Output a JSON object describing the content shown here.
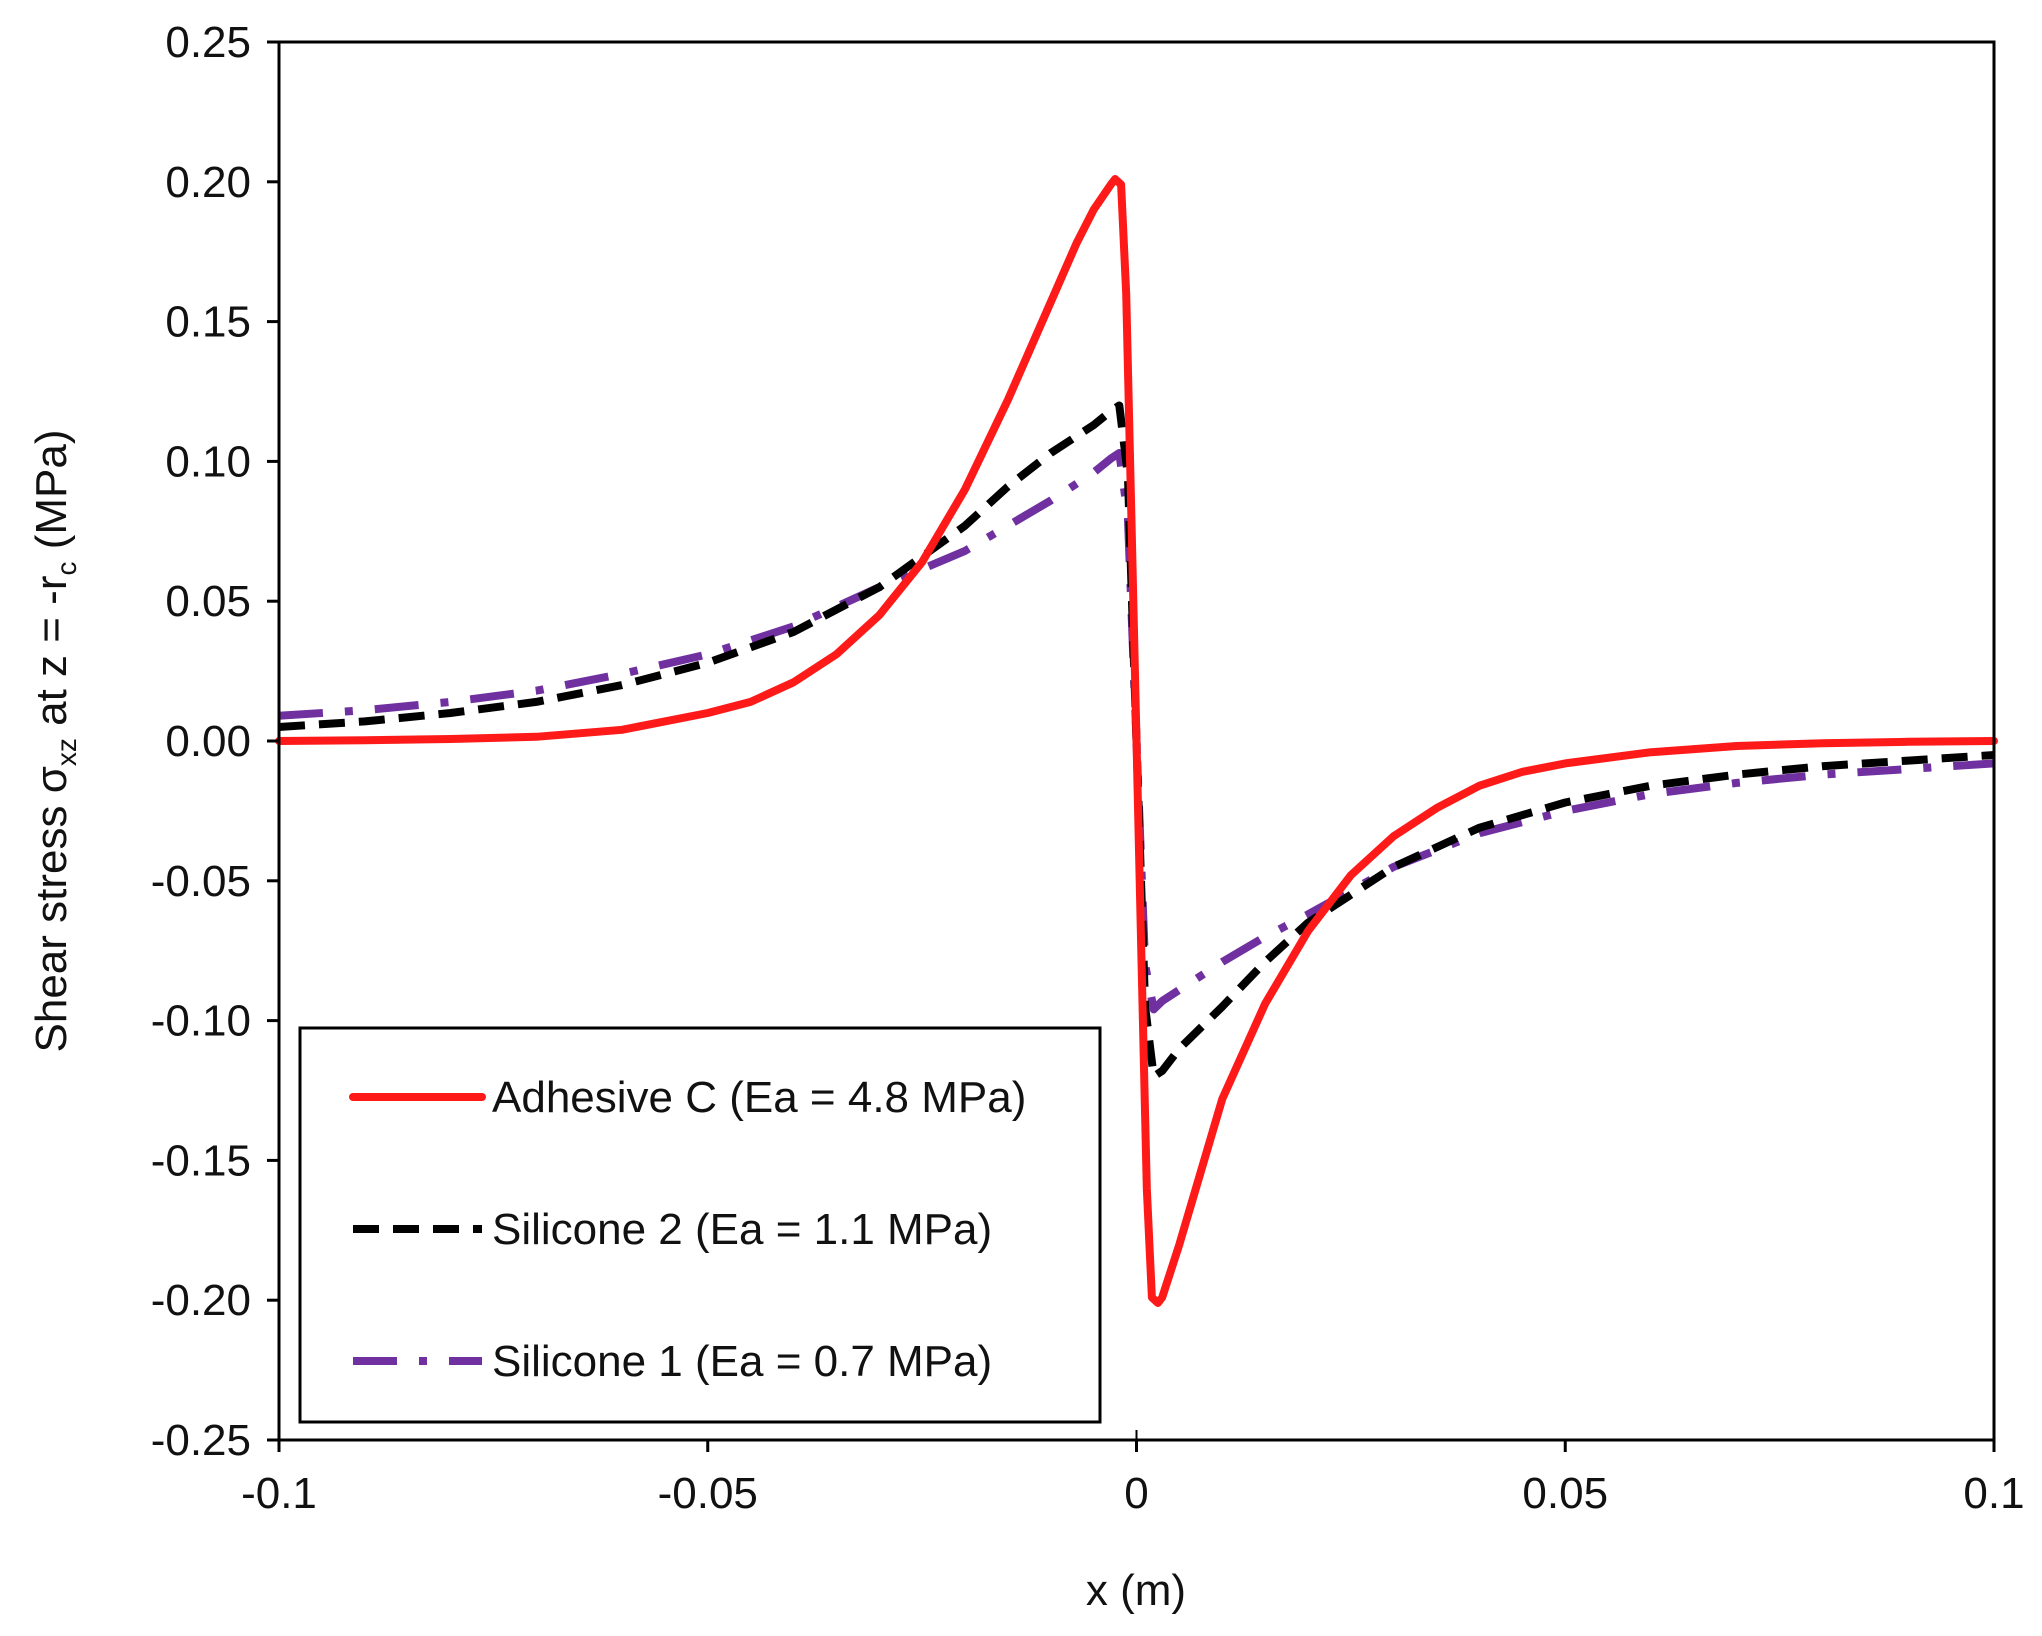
{
  "chart_data": {
    "type": "line",
    "title": "",
    "xlabel": "x (m)",
    "ylabel": {
      "prefix": "Shear stress σ",
      "sub1": "xz",
      "middle": "  at z = -r",
      "sub2": "c",
      "suffix": " (MPa)"
    },
    "xlim": [
      -0.1,
      0.1
    ],
    "ylim": [
      -0.25,
      0.25
    ],
    "xticks": [
      -0.1,
      -0.05,
      0,
      0.05,
      0.1
    ],
    "xtick_labels": [
      "-0.1",
      "-0.05",
      "0",
      "0.05",
      "0.1"
    ],
    "yticks": [
      0.25,
      0.2,
      0.15,
      0.1,
      0.05,
      0.0,
      -0.05,
      -0.1,
      -0.15,
      -0.2,
      -0.25
    ],
    "ytick_labels": [
      "0.25",
      "0.20",
      "0.15",
      "0.10",
      "0.05",
      "0.00",
      "-0.05",
      "-0.10",
      "-0.15",
      "-0.20",
      "-0.25"
    ],
    "grid": false,
    "legend_position": "bottom-left",
    "series": [
      {
        "name": "Adhesive C (Ea = 4.8 MPa)",
        "color": "#ff1a1a",
        "style": "solid",
        "x": [
          -0.1,
          -0.09,
          -0.08,
          -0.07,
          -0.06,
          -0.05,
          -0.045,
          -0.04,
          -0.035,
          -0.03,
          -0.025,
          -0.02,
          -0.015,
          -0.01,
          -0.007,
          -0.005,
          -0.003,
          -0.0025,
          -0.0018,
          -0.0012,
          -0.0006,
          0.0,
          0.0006,
          0.0012,
          0.0018,
          0.0025,
          0.003,
          0.005,
          0.01,
          0.015,
          0.02,
          0.025,
          0.03,
          0.035,
          0.04,
          0.045,
          0.05,
          0.06,
          0.07,
          0.08,
          0.09,
          0.1
        ],
        "y": [
          0.0,
          0.0003,
          0.0007,
          0.0015,
          0.004,
          0.01,
          0.014,
          0.021,
          0.031,
          0.045,
          0.064,
          0.09,
          0.122,
          0.157,
          0.178,
          0.19,
          0.199,
          0.201,
          0.199,
          0.16,
          0.08,
          0.0,
          -0.08,
          -0.16,
          -0.199,
          -0.201,
          -0.199,
          -0.18,
          -0.128,
          -0.094,
          -0.068,
          -0.048,
          -0.034,
          -0.024,
          -0.016,
          -0.011,
          -0.008,
          -0.004,
          -0.0018,
          -0.0008,
          -0.0003,
          0.0
        ]
      },
      {
        "name": "Silicone 2 (Ea = 1.1 MPa)",
        "color": "#000000",
        "style": "dashed",
        "x": [
          -0.1,
          -0.09,
          -0.08,
          -0.07,
          -0.06,
          -0.05,
          -0.04,
          -0.03,
          -0.02,
          -0.015,
          -0.01,
          -0.005,
          -0.003,
          -0.002,
          -0.001,
          0.0,
          0.001,
          0.002,
          0.003,
          0.005,
          0.01,
          0.015,
          0.02,
          0.03,
          0.04,
          0.05,
          0.06,
          0.07,
          0.08,
          0.09,
          0.1
        ],
        "y": [
          0.005,
          0.007,
          0.01,
          0.014,
          0.02,
          0.028,
          0.039,
          0.055,
          0.077,
          0.091,
          0.103,
          0.113,
          0.118,
          0.12,
          0.095,
          0.0,
          -0.095,
          -0.12,
          -0.118,
          -0.11,
          -0.095,
          -0.079,
          -0.065,
          -0.045,
          -0.031,
          -0.022,
          -0.016,
          -0.012,
          -0.009,
          -0.007,
          -0.005
        ]
      },
      {
        "name": "Silicone 1 (Ea = 0.7 MPa)",
        "color": "#7030a0",
        "style": "dashdot",
        "x": [
          -0.1,
          -0.09,
          -0.08,
          -0.07,
          -0.06,
          -0.05,
          -0.04,
          -0.03,
          -0.02,
          -0.015,
          -0.01,
          -0.005,
          -0.003,
          -0.002,
          -0.001,
          0.0,
          0.001,
          0.002,
          0.003,
          0.005,
          0.01,
          0.015,
          0.02,
          0.03,
          0.04,
          0.05,
          0.06,
          0.07,
          0.08,
          0.09,
          0.1
        ],
        "y": [
          0.009,
          0.011,
          0.014,
          0.018,
          0.024,
          0.031,
          0.041,
          0.055,
          0.068,
          0.077,
          0.086,
          0.096,
          0.101,
          0.103,
          0.08,
          0.0,
          -0.08,
          -0.096,
          -0.093,
          -0.089,
          -0.079,
          -0.07,
          -0.062,
          -0.045,
          -0.033,
          -0.025,
          -0.019,
          -0.015,
          -0.012,
          -0.01,
          -0.008
        ]
      }
    ]
  }
}
